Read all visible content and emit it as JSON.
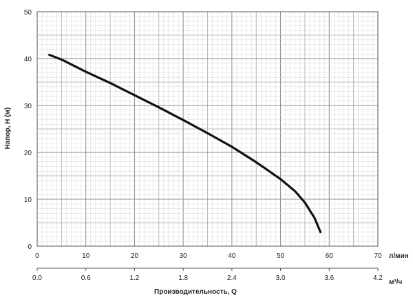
{
  "chart_data": {
    "type": "line",
    "x_primary": {
      "unit": "л/мин",
      "range": [
        0,
        70
      ],
      "ticks": [
        "0",
        "10",
        "20",
        "30",
        "40",
        "50",
        "60",
        "70"
      ]
    },
    "x_secondary": {
      "unit": "м³/ч",
      "range": [
        0,
        4.2
      ],
      "ticks": [
        "0.0",
        "0.6",
        "1.2",
        "1.8",
        "2.4",
        "3.0",
        "3.6",
        "4.2"
      ]
    },
    "y": {
      "label": "Напор, Н (м)",
      "range": [
        0,
        50
      ],
      "ticks": [
        "0",
        "10",
        "20",
        "30",
        "40",
        "50"
      ]
    },
    "xlabel": "Производительность, Q",
    "grid": true,
    "series": [
      {
        "x": [
          2.5,
          5,
          10,
          15,
          20,
          25,
          30,
          35,
          40,
          45,
          50,
          53,
          55,
          57,
          58.2
        ],
        "values": [
          40.8,
          39.8,
          37.2,
          34.8,
          32.2,
          29.6,
          26.9,
          24.1,
          21.2,
          17.9,
          14.3,
          11.7,
          9.3,
          6.0,
          3.0
        ],
        "color": "#111111"
      }
    ]
  }
}
